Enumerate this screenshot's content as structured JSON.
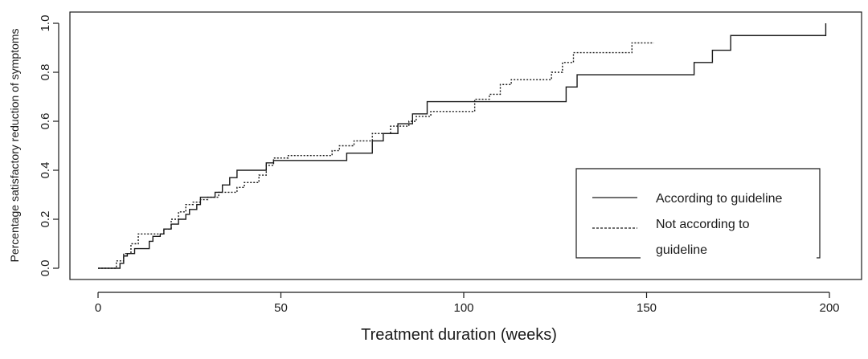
{
  "chart_data": {
    "type": "line",
    "title": "",
    "xlabel": "Treatment duration (weeks)",
    "ylabel": "Percentage satisfactory reduction of symptoms",
    "xlim": [
      0,
      200
    ],
    "ylim": [
      0,
      1.0
    ],
    "x_ticks": [
      "0",
      "50",
      "100",
      "150",
      "200"
    ],
    "y_ticks": [
      "0.0",
      "0.2",
      "0.4",
      "0.6",
      "0.8",
      "1.0"
    ],
    "grid": false,
    "legend_position": "bottom-right",
    "series": [
      {
        "name": "According to guideline",
        "style": "solid",
        "color": "#1a1a1a",
        "x": [
          0,
          6,
          7,
          8,
          10,
          14,
          15,
          17,
          18,
          20,
          22,
          24,
          25,
          27,
          28,
          32,
          34,
          36,
          38,
          39,
          46,
          48,
          66,
          68,
          69,
          75,
          76,
          78,
          82,
          86,
          87,
          90,
          127,
          128,
          130,
          131,
          162,
          163,
          167,
          168,
          172,
          173,
          199
        ],
        "y": [
          0.0,
          0.02,
          0.05,
          0.06,
          0.08,
          0.11,
          0.13,
          0.14,
          0.16,
          0.18,
          0.2,
          0.22,
          0.24,
          0.26,
          0.29,
          0.31,
          0.34,
          0.37,
          0.4,
          0.4,
          0.43,
          0.44,
          0.44,
          0.47,
          0.47,
          0.52,
          0.52,
          0.55,
          0.59,
          0.63,
          0.63,
          0.68,
          0.68,
          0.74,
          0.74,
          0.79,
          0.79,
          0.84,
          0.84,
          0.89,
          0.89,
          0.95,
          1.0
        ]
      },
      {
        "name": "Not according to guideline",
        "style": "dotted",
        "color": "#1a1a1a",
        "x": [
          0,
          5,
          7,
          9,
          11,
          15,
          18,
          20,
          22,
          24,
          26,
          28,
          30,
          33,
          38,
          40,
          44,
          46,
          48,
          52,
          64,
          66,
          70,
          75,
          80,
          85,
          87,
          91,
          103,
          107,
          110,
          113,
          117,
          124,
          127,
          130,
          134,
          146,
          152
        ],
        "y": [
          0.0,
          0.03,
          0.06,
          0.1,
          0.14,
          0.14,
          0.16,
          0.2,
          0.23,
          0.26,
          0.27,
          0.28,
          0.29,
          0.31,
          0.33,
          0.35,
          0.38,
          0.42,
          0.45,
          0.46,
          0.48,
          0.5,
          0.52,
          0.55,
          0.58,
          0.6,
          0.62,
          0.64,
          0.69,
          0.71,
          0.75,
          0.77,
          0.77,
          0.8,
          0.84,
          0.88,
          0.88,
          0.92,
          0.92
        ]
      }
    ],
    "legend": {
      "entries": [
        "According to guideline",
        "Not according to"
      ],
      "continuation": "guideline"
    }
  }
}
